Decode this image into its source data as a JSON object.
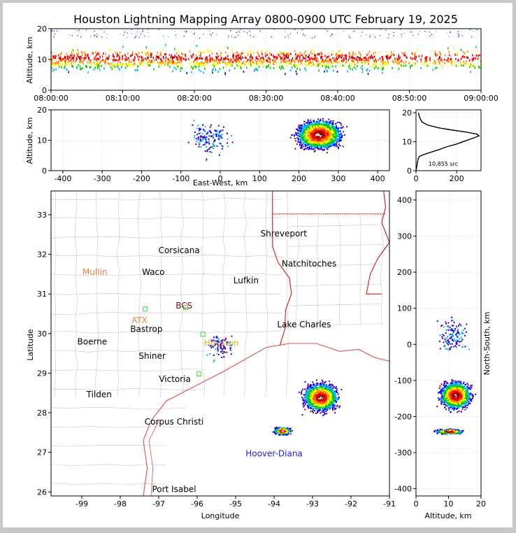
{
  "title": "Houston Lightning Mapping Array 0800-0900 UTC February 19, 2025",
  "colors": {
    "border": "#c8c8c8",
    "background": "#ffffff",
    "frame": "#000000",
    "county_lines": "#c8c8c8",
    "state_lines": "#d40000",
    "coastline": "#e05050",
    "density_scale": [
      "#4b00b4",
      "#0000ff",
      "#00b4ff",
      "#00c800",
      "#ffff00",
      "#ff8c00",
      "#ff0000",
      "#8b0000",
      "#ffffff"
    ]
  },
  "chart_data": [
    {
      "id": "time_height",
      "type": "scatter",
      "xlabel": "",
      "ylabel": "Altitude, km",
      "x_ticks": [
        "08:00:00",
        "08:10:00",
        "08:20:00",
        "08:30:00",
        "08:40:00",
        "08:50:00",
        "09:00:00"
      ],
      "xlim_minutes": [
        0,
        60
      ],
      "ylim": [
        0,
        20
      ],
      "y_ticks": [
        0,
        10,
        20
      ],
      "activity": "continuous sources between roughly 5 and 15 km altitude throughout the hour, thinning after 08:47"
    },
    {
      "id": "east_west_altitude",
      "type": "scatter",
      "xlabel": "East-West, km",
      "ylabel": "Altitude, km",
      "xlim": [
        -430,
        430
      ],
      "ylim": [
        0,
        20
      ],
      "x_ticks": [
        -400,
        -300,
        -200,
        -100,
        0,
        100,
        200,
        300,
        400
      ],
      "y_ticks": [
        0,
        10,
        20
      ],
      "clusters": [
        {
          "x_range": [
            140,
            320
          ],
          "y_range": [
            5,
            20
          ],
          "peak": [
            250,
            12
          ]
        },
        {
          "x_range": [
            -120,
            70
          ],
          "y_range": [
            2,
            20
          ],
          "peak": null
        }
      ]
    },
    {
      "id": "altitude_histogram",
      "type": "line",
      "xlabel": "",
      "ylabel": "",
      "xlim": [
        0,
        320
      ],
      "ylim": [
        0,
        21
      ],
      "x_ticks": [
        0,
        200
      ],
      "y_ticks": [
        0,
        10,
        20
      ],
      "annotation": "10,855 src",
      "profile": [
        [
          0,
          0
        ],
        [
          5,
          2
        ],
        [
          10,
          4
        ],
        [
          18,
          5
        ],
        [
          40,
          5.6
        ],
        [
          70,
          6.3
        ],
        [
          110,
          7.2
        ],
        [
          150,
          8.2
        ],
        [
          200,
          9.2
        ],
        [
          240,
          10.2
        ],
        [
          280,
          11.2
        ],
        [
          310,
          12
        ],
        [
          300,
          12.6
        ],
        [
          250,
          13.3
        ],
        [
          180,
          14
        ],
        [
          110,
          14.8
        ],
        [
          55,
          15.8
        ],
        [
          30,
          16.8
        ],
        [
          20,
          18
        ],
        [
          15,
          19
        ],
        [
          12,
          20
        ]
      ]
    },
    {
      "id": "plan_view",
      "type": "scatter",
      "xlabel": "Longitude",
      "ylabel": "Latitude",
      "xlim": [
        -99.8,
        -91
      ],
      "ylim": [
        25.9,
        33.6
      ],
      "x_ticks": [
        -99,
        -98,
        -97,
        -96,
        -95,
        -94,
        -93,
        -92,
        -91
      ],
      "y_ticks": [
        26,
        27,
        28,
        29,
        30,
        31,
        32,
        33
      ],
      "clusters": [
        {
          "lon_range": [
            -93.6,
            -92.2
          ],
          "lat_range": [
            27.9,
            29.0
          ],
          "peak": [
            -92.8,
            28.4
          ]
        },
        {
          "lon_range": [
            -94.1,
            -93.4
          ],
          "lat_range": [
            27.4,
            27.7
          ],
          "peak": [
            -93.8,
            27.55
          ]
        },
        {
          "lon_range": [
            -96.0,
            -94.8
          ],
          "lat_range": [
            29.2,
            30.2
          ],
          "peak": null
        }
      ]
    },
    {
      "id": "altitude_north_south",
      "type": "scatter",
      "xlabel": "Altitude, km",
      "ylabel": "North-South, km",
      "xlim": [
        0,
        20
      ],
      "ylim": [
        -420,
        425
      ],
      "x_ticks": [
        0,
        10,
        20
      ],
      "y_ticks": [
        -400,
        -300,
        -200,
        -100,
        0,
        100,
        200,
        300,
        400
      ],
      "clusters": [
        {
          "x_range": [
            5,
            20
          ],
          "y_range": [
            -200,
            -80
          ],
          "peak": [
            12,
            -140
          ]
        },
        {
          "x_range": [
            5,
            18
          ],
          "y_range": [
            -250,
            -230
          ],
          "peak": [
            10,
            -240
          ]
        },
        {
          "x_range": [
            2,
            20
          ],
          "y_range": [
            -60,
            110
          ],
          "peak": null
        }
      ]
    }
  ],
  "map": {
    "labels": [
      {
        "name": "Shreveport",
        "lon": -93.75,
        "lat": 32.52,
        "color": "#000000",
        "kind": "city"
      },
      {
        "name": "Corsicana",
        "lon": -96.47,
        "lat": 32.1,
        "color": "#000000",
        "kind": "city"
      },
      {
        "name": "Natchitoches",
        "lon": -93.09,
        "lat": 31.76,
        "color": "#000000",
        "kind": "city"
      },
      {
        "name": "Mullin",
        "lon": -98.66,
        "lat": 31.55,
        "color": "#f08040",
        "kind": "radar"
      },
      {
        "name": "Waco",
        "lon": -97.14,
        "lat": 31.55,
        "color": "#000000",
        "kind": "city"
      },
      {
        "name": "Lufkin",
        "lon": -94.73,
        "lat": 31.34,
        "color": "#000000",
        "kind": "city"
      },
      {
        "name": "BCS",
        "lon": -96.34,
        "lat": 30.7,
        "color": "#7a1010",
        "kind": "radar"
      },
      {
        "name": "ATX",
        "lon": -97.5,
        "lat": 30.33,
        "color": "#f08040",
        "kind": "radar"
      },
      {
        "name": "Bastrop",
        "lon": -97.32,
        "lat": 30.11,
        "color": "#000000",
        "kind": "city"
      },
      {
        "name": "Lake Charles",
        "lon": -93.22,
        "lat": 30.23,
        "color": "#000000",
        "kind": "city"
      },
      {
        "name": "Boerne",
        "lon": -98.73,
        "lat": 29.79,
        "color": "#000000",
        "kind": "city"
      },
      {
        "name": "Houston",
        "lon": -95.37,
        "lat": 29.76,
        "color": "#f5a623",
        "kind": "radar"
      },
      {
        "name": "Shiner",
        "lon": -97.17,
        "lat": 29.43,
        "color": "#000000",
        "kind": "city"
      },
      {
        "name": "Victoria",
        "lon": -96.58,
        "lat": 28.85,
        "color": "#000000",
        "kind": "city"
      },
      {
        "name": "Tilden",
        "lon": -98.55,
        "lat": 28.46,
        "color": "#000000",
        "kind": "city"
      },
      {
        "name": "Corpus Christi",
        "lon": -96.6,
        "lat": 27.77,
        "color": "#000000",
        "kind": "city"
      },
      {
        "name": "Hoover-Diana",
        "lon": -94.0,
        "lat": 26.97,
        "color": "#2020ff",
        "kind": "platform"
      },
      {
        "name": "Port Isabel",
        "lon": -96.6,
        "lat": 26.07,
        "color": "#000000",
        "kind": "city"
      }
    ],
    "stations": [
      [
        -97.35,
        30.62
      ],
      [
        -96.3,
        30.66
      ],
      [
        -95.85,
        29.98
      ],
      [
        -95.95,
        28.98
      ]
    ]
  }
}
